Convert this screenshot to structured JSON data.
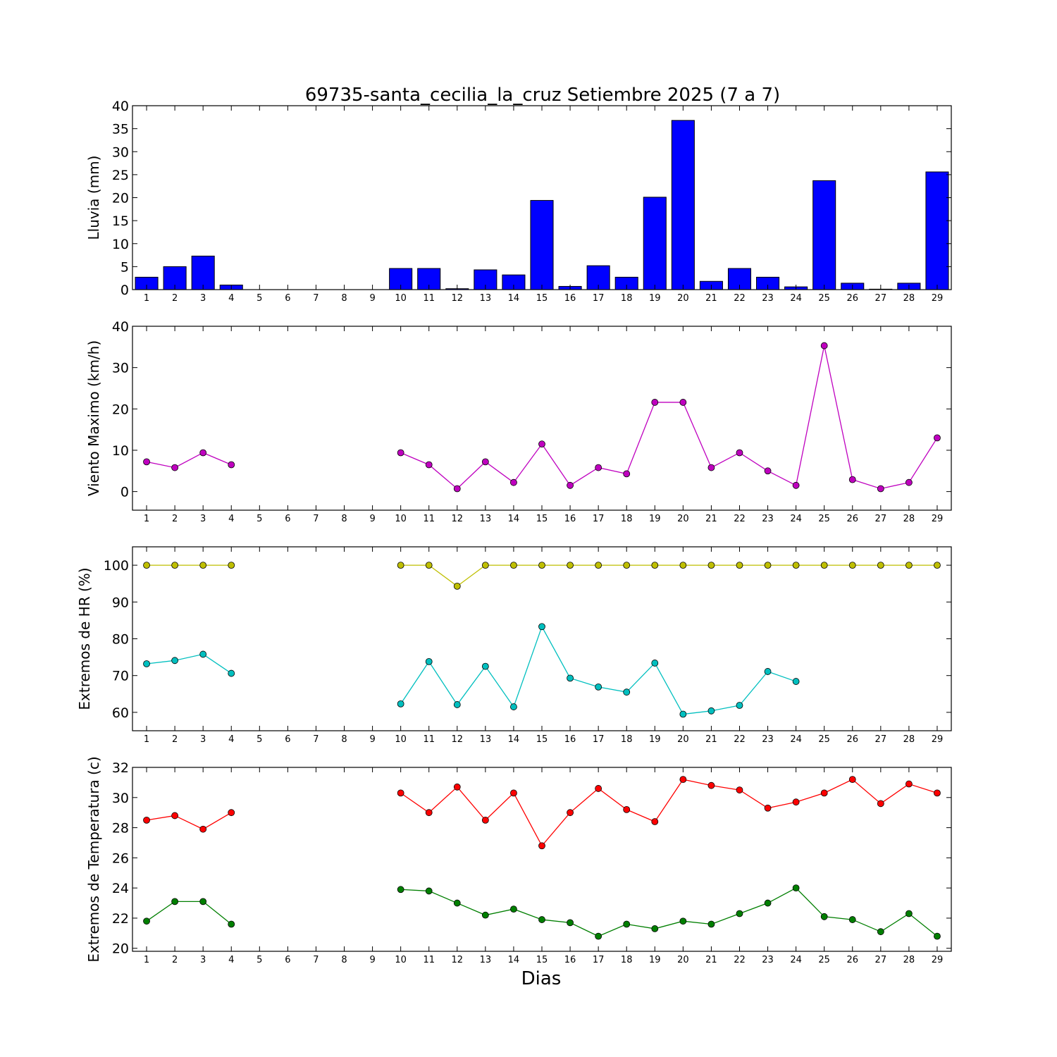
{
  "title": "69735-santa_cecilia_la_cruz Setiembre 2025  (7 a 7)",
  "xlabel": "Dias",
  "chart_data": [
    {
      "id": "lluvia",
      "type": "bar",
      "ylabel": "Lluvia (mm)",
      "ylim": [
        0,
        40
      ],
      "yticks": [
        0,
        5,
        10,
        15,
        20,
        25,
        30,
        35,
        40
      ],
      "categories": [
        1,
        2,
        3,
        4,
        5,
        6,
        7,
        8,
        9,
        10,
        11,
        12,
        13,
        14,
        15,
        16,
        17,
        18,
        19,
        20,
        21,
        22,
        23,
        24,
        25,
        26,
        27,
        28,
        29
      ],
      "series": [
        {
          "color": "#0000ff",
          "values": [
            2.7,
            5.0,
            7.3,
            1.0,
            0,
            0,
            0,
            0,
            0,
            4.6,
            4.6,
            0.2,
            4.3,
            3.2,
            19.4,
            0.7,
            5.2,
            2.7,
            20.1,
            36.8,
            1.8,
            4.6,
            2.7,
            0.6,
            23.7,
            1.4,
            0.1,
            1.4,
            25.6
          ]
        }
      ]
    },
    {
      "id": "viento",
      "type": "line",
      "ylabel": "Viento Maximo (km/h)",
      "ylim": [
        -4.5,
        40
      ],
      "yticks": [
        0,
        10,
        20,
        30,
        40
      ],
      "categories": [
        1,
        2,
        3,
        4,
        5,
        6,
        7,
        8,
        9,
        10,
        11,
        12,
        13,
        14,
        15,
        16,
        17,
        18,
        19,
        20,
        21,
        22,
        23,
        24,
        25,
        26,
        27,
        28,
        29
      ],
      "series": [
        {
          "color": "#bf00bf",
          "values": [
            7.2,
            5.8,
            9.4,
            6.5,
            null,
            null,
            null,
            null,
            null,
            9.4,
            6.5,
            0.7,
            7.2,
            2.2,
            11.5,
            1.5,
            5.8,
            4.3,
            21.6,
            21.6,
            5.8,
            9.4,
            5.0,
            1.5,
            35.3,
            2.9,
            0.7,
            2.2,
            13.0
          ]
        }
      ]
    },
    {
      "id": "hr",
      "type": "line",
      "ylabel": "Extremos de HR (%)",
      "ylim": [
        55,
        105
      ],
      "yticks": [
        60,
        70,
        80,
        90,
        100
      ],
      "categories": [
        1,
        2,
        3,
        4,
        5,
        6,
        7,
        8,
        9,
        10,
        11,
        12,
        13,
        14,
        15,
        16,
        17,
        18,
        19,
        20,
        21,
        22,
        23,
        24,
        25,
        26,
        27,
        28,
        29
      ],
      "series": [
        {
          "color": "#bfbf00",
          "values": [
            100,
            100,
            100,
            100,
            null,
            null,
            null,
            null,
            null,
            100,
            100,
            94.3,
            100,
            100,
            100,
            100,
            100,
            100,
            100,
            100,
            100,
            100,
            100,
            100,
            100,
            100,
            100,
            100,
            100
          ]
        },
        {
          "color": "#00bfbf",
          "values": [
            73.2,
            74.1,
            75.8,
            70.6,
            null,
            null,
            null,
            null,
            null,
            62.3,
            73.8,
            62.1,
            72.5,
            61.5,
            83.3,
            69.3,
            66.9,
            65.5,
            73.4,
            59.5,
            60.4,
            61.9,
            71.1,
            68.4,
            null,
            null,
            null,
            null,
            null
          ]
        }
      ]
    },
    {
      "id": "temp",
      "type": "line",
      "ylabel": "Extremos de Temperatura (c)",
      "ylim": [
        19.8,
        32
      ],
      "yticks": [
        20,
        22,
        24,
        26,
        28,
        30,
        32
      ],
      "categories": [
        1,
        2,
        3,
        4,
        5,
        6,
        7,
        8,
        9,
        10,
        11,
        12,
        13,
        14,
        15,
        16,
        17,
        18,
        19,
        20,
        21,
        22,
        23,
        24,
        25,
        26,
        27,
        28,
        29
      ],
      "series": [
        {
          "color": "#ff0000",
          "values": [
            28.5,
            28.8,
            27.9,
            29.0,
            null,
            null,
            null,
            null,
            null,
            30.3,
            29.0,
            30.7,
            28.5,
            30.3,
            26.8,
            29.0,
            30.6,
            29.2,
            28.4,
            31.2,
            30.8,
            30.5,
            29.3,
            29.7,
            30.3,
            31.2,
            29.6,
            30.9,
            30.3
          ]
        },
        {
          "color": "#007f00",
          "values": [
            21.8,
            23.1,
            23.1,
            21.6,
            null,
            null,
            null,
            null,
            null,
            23.9,
            23.8,
            23.0,
            22.2,
            22.6,
            21.9,
            21.7,
            20.8,
            21.6,
            21.3,
            21.8,
            21.6,
            22.3,
            23.0,
            24.0,
            22.1,
            21.9,
            21.1,
            22.3,
            20.8
          ]
        }
      ]
    }
  ]
}
